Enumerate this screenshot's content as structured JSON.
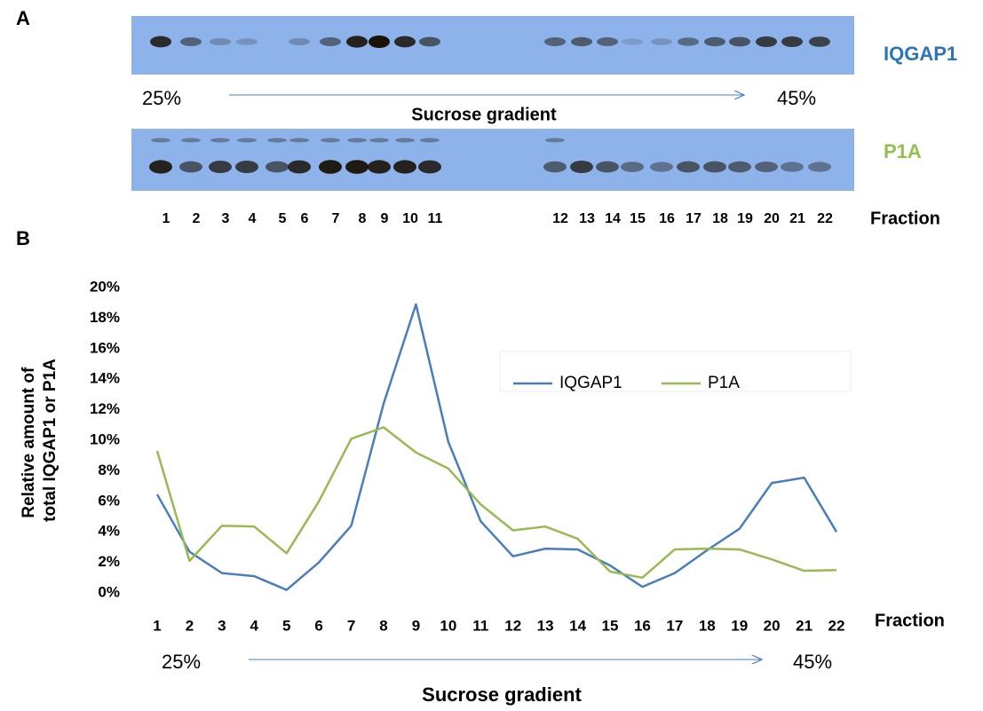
{
  "panel_a": {
    "label": "A",
    "protein_1": "IQGAP1",
    "gradient_start": "25%",
    "gradient_end": "45%",
    "gradient_label": "Sucrose gradient",
    "protein_2": "P1A",
    "fractions": [
      "1",
      "2",
      "3",
      "4",
      "5",
      "6",
      "7",
      "8",
      "9",
      "10",
      "11",
      "12",
      "13",
      "14",
      "15",
      "16",
      "17",
      "18",
      "19",
      "20",
      "21",
      "22"
    ],
    "fraction_label": "Fraction"
  },
  "chart_data": {
    "type": "line",
    "panel_label": "B",
    "y_label": [
      "Relative amount of",
      "total IQGAP1 or P1A"
    ],
    "x_label": "Fraction",
    "gradient_start": "25%",
    "gradient_end": "45%",
    "gradient_label": "Sucrose gradient",
    "categories": [
      "1",
      "2",
      "3",
      "4",
      "5",
      "6",
      "7",
      "8",
      "9",
      "10",
      "11",
      "12",
      "13",
      "14",
      "15",
      "16",
      "17",
      "18",
      "19",
      "20",
      "21",
      "22"
    ],
    "series": [
      {
        "name": "IQGAP1",
        "color": "#4a7ebb",
        "values": [
          6.45,
          2.7,
          1.3,
          1.1,
          0.2,
          2.0,
          4.4,
          12.4,
          18.9,
          9.9,
          4.7,
          2.4,
          2.9,
          2.85,
          1.8,
          0.4,
          1.3,
          2.8,
          4.2,
          7.2,
          7.55,
          4.0
        ]
      },
      {
        "name": "P1A",
        "color": "#98b954",
        "values": [
          9.3,
          2.1,
          4.4,
          4.35,
          2.6,
          6.0,
          10.1,
          10.85,
          9.2,
          8.15,
          5.8,
          4.1,
          4.35,
          3.55,
          1.4,
          1.0,
          2.85,
          2.9,
          2.85,
          2.2,
          1.45,
          1.5
        ]
      }
    ],
    "ylim": [
      0,
      20
    ],
    "yticks": [
      {
        "value": 0,
        "label": "0%"
      },
      {
        "value": 2,
        "label": "2%"
      },
      {
        "value": 4,
        "label": "4%"
      },
      {
        "value": 6,
        "label": "6%"
      },
      {
        "value": 8,
        "label": "8%"
      },
      {
        "value": 10,
        "label": "10%"
      },
      {
        "value": 12,
        "label": "12%"
      },
      {
        "value": 14,
        "label": "14%"
      },
      {
        "value": 16,
        "label": "16%"
      },
      {
        "value": 18,
        "label": "18%"
      },
      {
        "value": 20,
        "label": "20%"
      }
    ],
    "grid": false
  }
}
